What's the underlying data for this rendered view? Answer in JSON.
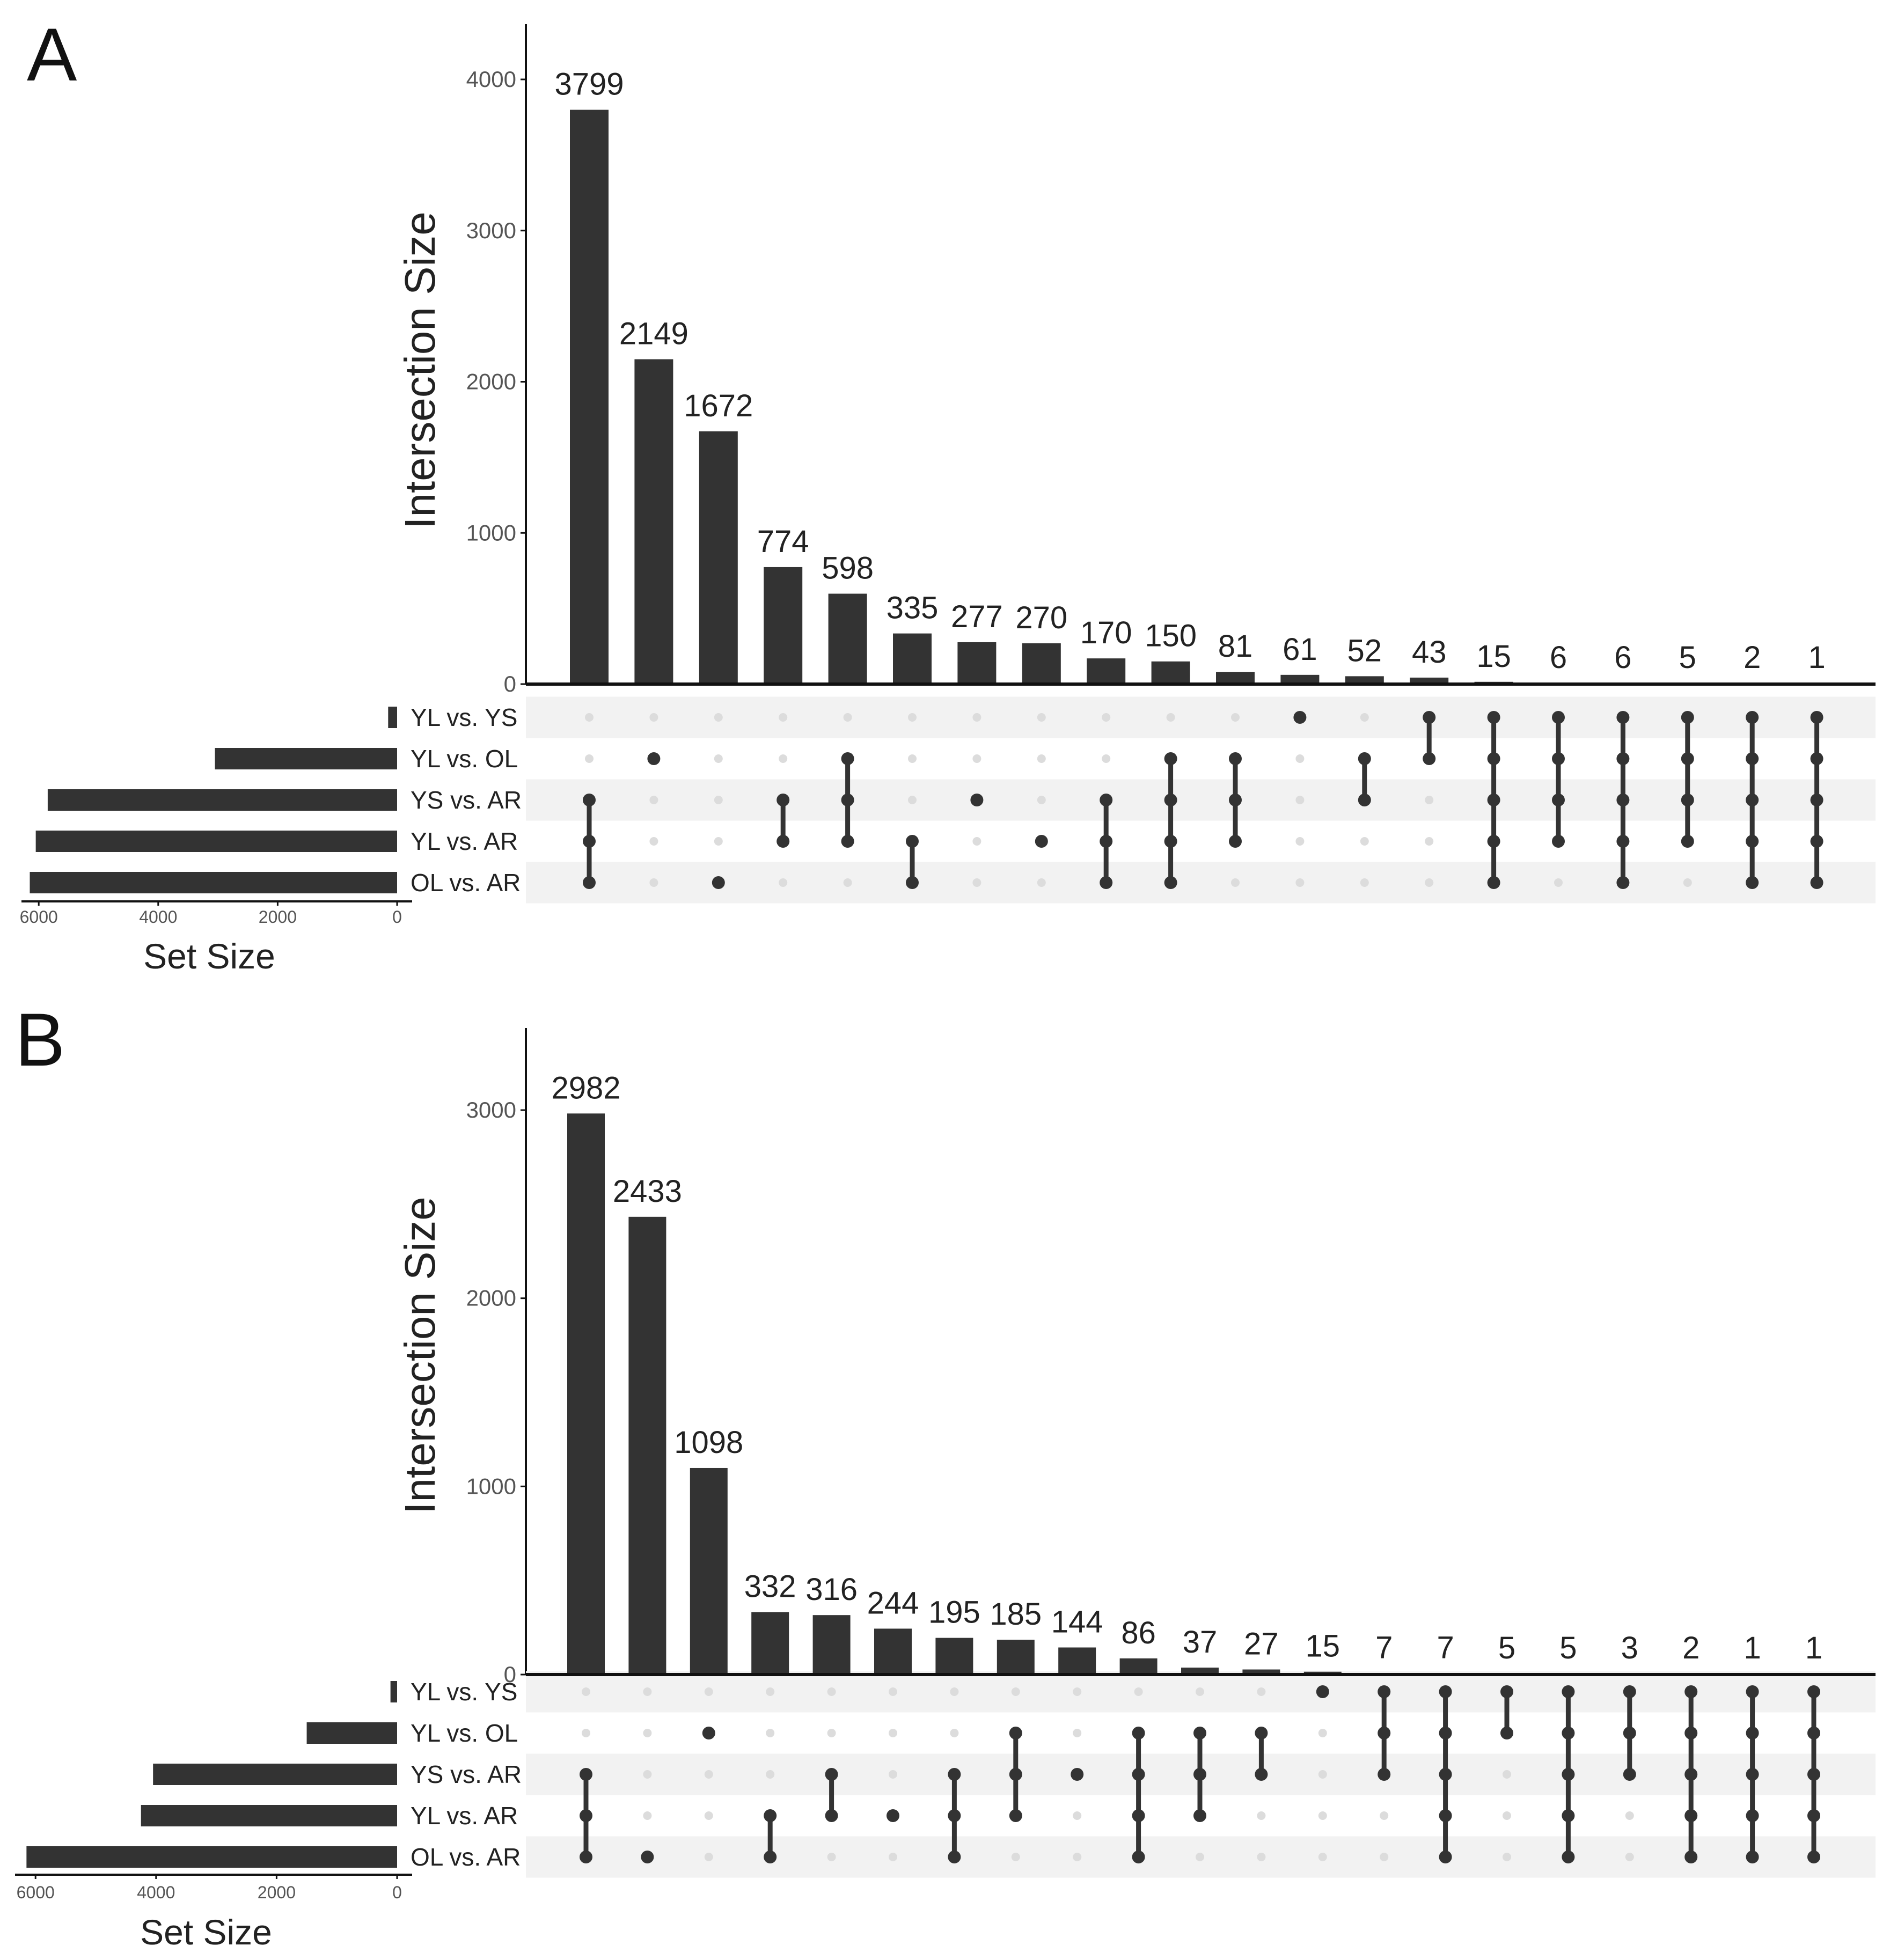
{
  "colors": {
    "bar": "#333333",
    "dot_active": "#333333",
    "dot_inactive": "#dcdcdc",
    "stripe": "#f2f2f2",
    "tick": "#555555",
    "text": "#222222"
  },
  "sets": [
    "YL vs. YS",
    "YL vs. OL",
    "YS vs. AR",
    "YL vs. AR",
    "OL vs. AR"
  ],
  "chart_data": [
    {
      "type": "bar",
      "panel_label": "A",
      "ylabel": "Intersection Size",
      "ylim": [
        0,
        4270
      ],
      "yticks": [
        0,
        1000,
        2000,
        3000,
        4000
      ],
      "intersections": [
        {
          "value": 3799,
          "sets": [
            "YS vs. AR",
            "YL vs. AR",
            "OL vs. AR"
          ]
        },
        {
          "value": 2149,
          "sets": [
            "YL vs. OL"
          ]
        },
        {
          "value": 1672,
          "sets": [
            "OL vs. AR"
          ]
        },
        {
          "value": 774,
          "sets": [
            "YS vs. AR",
            "YL vs. AR"
          ]
        },
        {
          "value": 598,
          "sets": [
            "YL vs. OL",
            "YS vs. AR",
            "YL vs. AR"
          ]
        },
        {
          "value": 335,
          "sets": [
            "YL vs. AR",
            "OL vs. AR"
          ]
        },
        {
          "value": 277,
          "sets": [
            "YS vs. AR"
          ]
        },
        {
          "value": 270,
          "sets": [
            "YL vs. AR"
          ]
        },
        {
          "value": 170,
          "sets": [
            "YS vs. AR",
            "YL vs. AR",
            "OL vs. AR"
          ]
        },
        {
          "value": 150,
          "sets": [
            "YL vs. OL",
            "YS vs. AR",
            "YL vs. AR",
            "OL vs. AR"
          ]
        },
        {
          "value": 81,
          "sets": [
            "YL vs. OL",
            "YS vs. AR",
            "YL vs. AR"
          ]
        },
        {
          "value": 61,
          "sets": [
            "YL vs. YS"
          ]
        },
        {
          "value": 52,
          "sets": [
            "YL vs. OL",
            "YS vs. AR"
          ]
        },
        {
          "value": 43,
          "sets": [
            "YL vs. YS",
            "YL vs. OL"
          ]
        },
        {
          "value": 15,
          "sets": [
            "YL vs. YS",
            "YL vs. OL",
            "YS vs. AR",
            "YL vs. AR",
            "OL vs. AR"
          ]
        },
        {
          "value": 6,
          "sets": [
            "YL vs. YS",
            "YL vs. OL",
            "YS vs. AR",
            "YL vs. AR"
          ]
        },
        {
          "value": 6,
          "sets": [
            "YL vs. YS",
            "YL vs. OL",
            "YS vs. AR",
            "YL vs. AR",
            "OL vs. AR"
          ]
        },
        {
          "value": 5,
          "sets": [
            "YL vs. YS",
            "YL vs. OL",
            "YS vs. AR",
            "YL vs. AR"
          ]
        },
        {
          "value": 2,
          "sets": [
            "YL vs. YS",
            "YL vs. OL",
            "YS vs. AR",
            "YL vs. AR",
            "OL vs. AR"
          ]
        },
        {
          "value": 1,
          "sets": [
            "YL vs. YS",
            "YL vs. OL",
            "YS vs. AR",
            "YL vs. AR",
            "OL vs. AR"
          ]
        }
      ],
      "set_sizes": {
        "xlabel": "Set Size",
        "xlim": [
          0,
          6300
        ],
        "xticks": [
          6000,
          4000,
          2000,
          0
        ],
        "values": [
          150,
          3050,
          5850,
          6050,
          6150
        ]
      }
    },
    {
      "type": "bar",
      "panel_label": "B",
      "ylabel": "Intersection Size",
      "ylim": [
        0,
        3440
      ],
      "yticks": [
        0,
        1000,
        2000,
        3000
      ],
      "intersections": [
        {
          "value": 2982,
          "sets": [
            "YS vs. AR",
            "YL vs. AR",
            "OL vs. AR"
          ]
        },
        {
          "value": 2433,
          "sets": [
            "OL vs. AR"
          ]
        },
        {
          "value": 1098,
          "sets": [
            "YL vs. OL"
          ]
        },
        {
          "value": 332,
          "sets": [
            "YL vs. AR",
            "OL vs. AR"
          ]
        },
        {
          "value": 316,
          "sets": [
            "YS vs. AR",
            "YL vs. AR"
          ]
        },
        {
          "value": 244,
          "sets": [
            "YL vs. AR"
          ]
        },
        {
          "value": 195,
          "sets": [
            "YS vs. AR",
            "YL vs. AR",
            "OL vs. AR"
          ]
        },
        {
          "value": 185,
          "sets": [
            "YL vs. OL",
            "YS vs. AR",
            "YL vs. AR"
          ]
        },
        {
          "value": 144,
          "sets": [
            "YS vs. AR"
          ]
        },
        {
          "value": 86,
          "sets": [
            "YL vs. OL",
            "YS vs. AR",
            "YL vs. AR",
            "OL vs. AR"
          ]
        },
        {
          "value": 37,
          "sets": [
            "YL vs. OL",
            "YS vs. AR",
            "YL vs. AR"
          ]
        },
        {
          "value": 27,
          "sets": [
            "YL vs. OL",
            "YS vs. AR"
          ]
        },
        {
          "value": 15,
          "sets": [
            "YL vs. YS"
          ]
        },
        {
          "value": 7,
          "sets": [
            "YL vs. YS",
            "YL vs. OL",
            "YS vs. AR"
          ]
        },
        {
          "value": 7,
          "sets": [
            "YL vs. YS",
            "YL vs. OL",
            "YS vs. AR",
            "YL vs. AR",
            "OL vs. AR"
          ]
        },
        {
          "value": 5,
          "sets": [
            "YL vs. YS",
            "YL vs. OL"
          ]
        },
        {
          "value": 5,
          "sets": [
            "YL vs. YS",
            "YL vs. OL",
            "YS vs. AR",
            "YL vs. AR",
            "OL vs. AR"
          ]
        },
        {
          "value": 3,
          "sets": [
            "YL vs. YS",
            "YL vs. OL",
            "YS vs. AR"
          ]
        },
        {
          "value": 2,
          "sets": [
            "YL vs. YS",
            "YL vs. OL",
            "YS vs. AR",
            "YL vs. AR",
            "OL vs. AR"
          ]
        },
        {
          "value": 1,
          "sets": [
            "YL vs. YS",
            "YL vs. OL",
            "YS vs. AR",
            "YL vs. AR",
            "OL vs. AR"
          ]
        },
        {
          "value": 1,
          "sets": [
            "YL vs. YS",
            "YL vs. OL",
            "YS vs. AR",
            "YL vs. AR",
            "OL vs. AR"
          ]
        }
      ],
      "set_sizes": {
        "xlabel": "Set Size",
        "xlim": [
          0,
          6300
        ],
        "xticks": [
          6000,
          4000,
          2000,
          0
        ],
        "values": [
          110,
          1500,
          4050,
          4250,
          6150
        ]
      }
    }
  ]
}
